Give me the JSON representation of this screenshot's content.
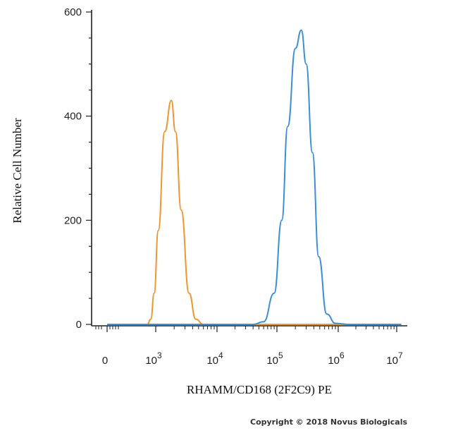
{
  "chart_data": {
    "type": "line",
    "xlabel": "RHAMM/CD168 (2F2C9) PE",
    "ylabel": "Relative Cell Number",
    "x_scale": "biexponential",
    "ylim": [
      0,
      600
    ],
    "y_ticks": [
      {
        "value": 0,
        "label": "0"
      },
      {
        "value": 200,
        "label": "200"
      },
      {
        "value": 400,
        "label": "400"
      },
      {
        "value": 600,
        "label": "600"
      }
    ],
    "x_ticks": [
      {
        "value": 0,
        "base": "0",
        "exp": ""
      },
      {
        "value": 1000,
        "base": "10",
        "exp": "3"
      },
      {
        "value": 10000,
        "base": "10",
        "exp": "4"
      },
      {
        "value": 100000,
        "base": "10",
        "exp": "5"
      },
      {
        "value": 1000000,
        "base": "10",
        "exp": "6"
      },
      {
        "value": 10000000,
        "base": "10",
        "exp": "7"
      }
    ],
    "series": [
      {
        "color": "#f0962e",
        "points": [
          [
            1,
            0
          ],
          [
            300,
            0
          ],
          [
            500,
            10
          ],
          [
            800,
            60
          ],
          [
            1100,
            180
          ],
          [
            1400,
            370
          ],
          [
            1800,
            430
          ],
          [
            2100,
            370
          ],
          [
            2600,
            220
          ],
          [
            3500,
            60
          ],
          [
            4500,
            10
          ],
          [
            6000,
            0
          ],
          [
            12000000,
            0
          ]
        ]
      },
      {
        "color": "#3b8fd8",
        "points": [
          [
            1,
            0
          ],
          [
            40000,
            0
          ],
          [
            60000,
            5
          ],
          [
            90000,
            60
          ],
          [
            120000,
            200
          ],
          [
            150000,
            380
          ],
          [
            200000,
            530
          ],
          [
            250000,
            565
          ],
          [
            300000,
            500
          ],
          [
            380000,
            330
          ],
          [
            480000,
            130
          ],
          [
            650000,
            20
          ],
          [
            900000,
            2
          ],
          [
            1500000,
            0
          ],
          [
            12000000,
            0
          ]
        ]
      }
    ]
  },
  "copyright": "Copyright © 2018 Novus Biologicals"
}
